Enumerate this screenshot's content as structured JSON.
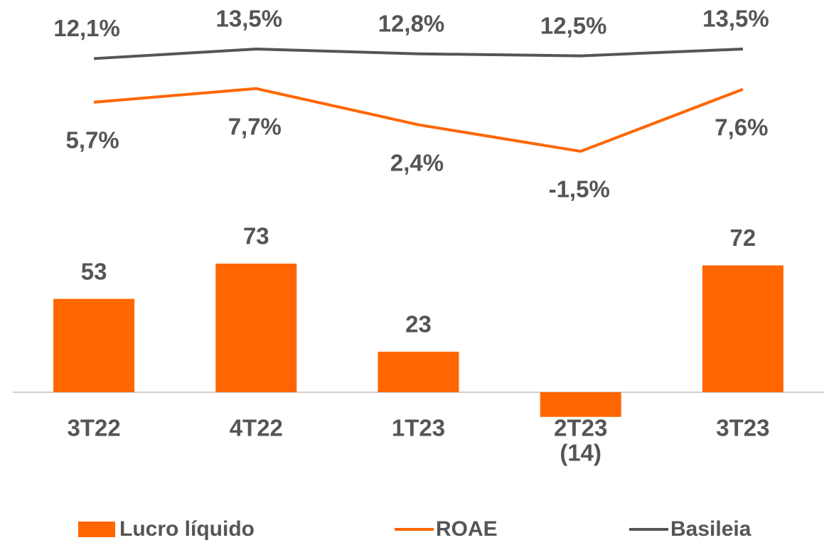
{
  "chart_data": {
    "type": "bar",
    "categories": [
      "3T22",
      "4T22",
      "1T23",
      "2T23",
      "3T23"
    ],
    "series": [
      {
        "name": "Lucro líquido",
        "type": "bar",
        "color": "#ff6600",
        "values": [
          53,
          73,
          23,
          -14,
          72
        ],
        "value_labels": [
          "53",
          "73",
          "23",
          "(14)",
          "72"
        ]
      },
      {
        "name": "ROAE",
        "type": "line",
        "axis": "y2",
        "color": "#ff6600",
        "values": [
          5.7,
          7.7,
          2.4,
          -1.5,
          7.6
        ],
        "value_labels": [
          "5,7%",
          "7,7%",
          "2,4%",
          "-1,5%",
          "7,6%"
        ]
      },
      {
        "name": "Basileia",
        "type": "line",
        "axis": "y2",
        "color": "#555555",
        "values": [
          12.1,
          13.5,
          12.8,
          12.5,
          13.5
        ],
        "value_labels": [
          "12,1%",
          "13,5%",
          "12,8%",
          "12,5%",
          "13,5%"
        ]
      }
    ]
  }
}
